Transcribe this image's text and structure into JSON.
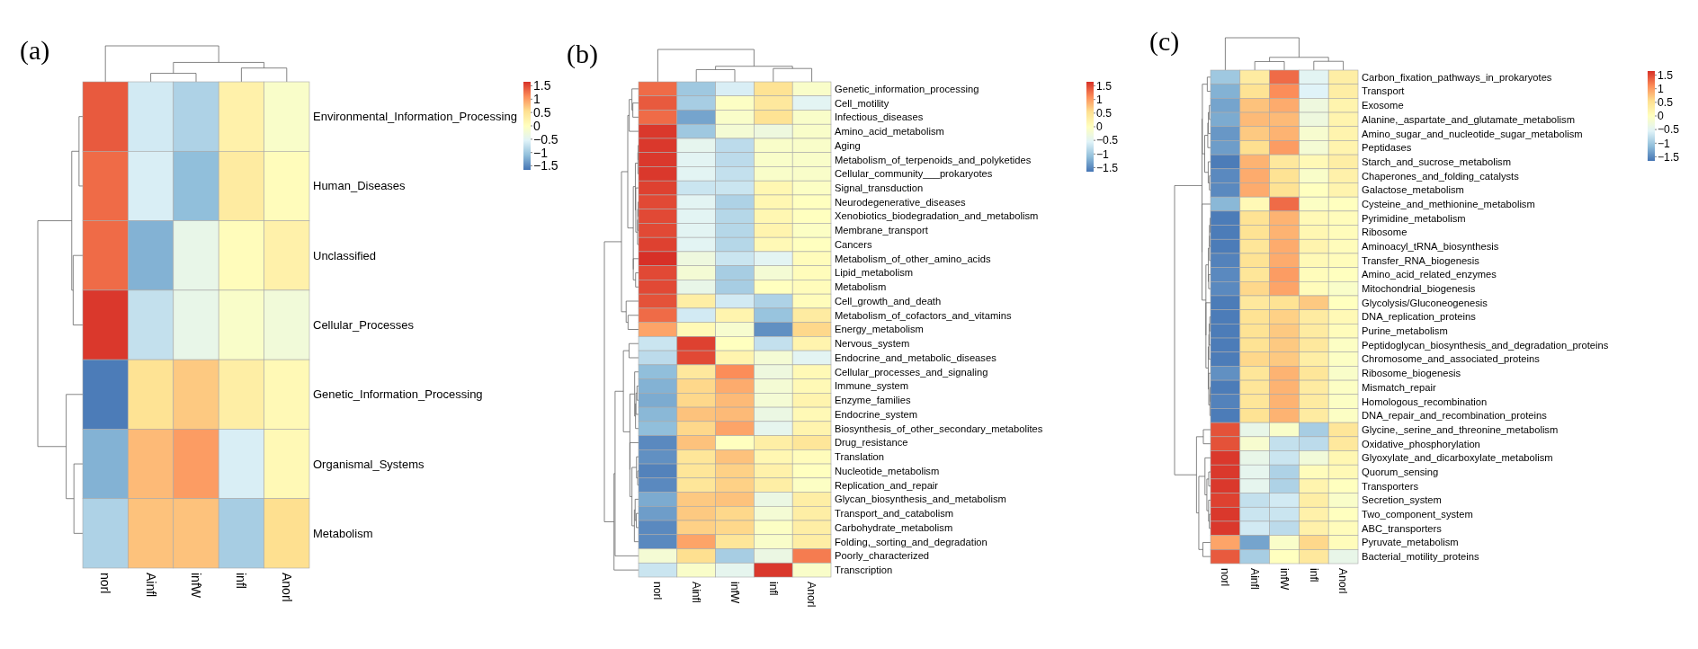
{
  "chart_data": [
    {
      "type": "heatmap",
      "title": "(a)",
      "categories": [
        "norl",
        "Ainfl",
        "infW",
        "infl",
        "Anorl"
      ],
      "y_categories": [
        "Environmental_Information_Processing",
        "Human_Diseases",
        "Unclassified",
        "Cellular_Processes",
        "Genetic_Information_Processing",
        "Organismal_Systems",
        "Metabolism"
      ],
      "cells": [
        [
          1.4,
          -0.65,
          -0.9,
          0.25,
          -0.1
        ],
        [
          1.3,
          -0.6,
          -1.1,
          0.35,
          0.05
        ],
        [
          1.3,
          -1.2,
          -0.4,
          0.05,
          0.25
        ],
        [
          1.6,
          -0.75,
          -0.4,
          -0.1,
          -0.25
        ],
        [
          -1.6,
          0.5,
          0.7,
          0.3,
          0.1
        ],
        [
          -1.2,
          0.8,
          1.0,
          -0.6,
          0.1
        ],
        [
          -0.9,
          0.75,
          0.75,
          -0.95,
          0.55
        ]
      ],
      "clim": [
        -1.65,
        1.65
      ],
      "cticks": [
        1.5,
        1,
        0.5,
        0,
        {
          "value": -0.5,
          "label": "−0.5"
        },
        {
          "value": -1,
          "label": "−1"
        },
        {
          "value": -1.5,
          "label": "−1.5"
        }
      ]
    },
    {
      "type": "heatmap",
      "title": "(b)",
      "categories": [
        "norl",
        "Ainfl",
        "infW",
        "infl",
        "Anorl"
      ],
      "y_categories": [
        "Genetic_information_processing",
        "Cell_motility",
        "Infectious_diseases",
        "Amino_acid_metabolism",
        "Aging",
        "Metabolism_of_terpenoids_and_polyketides",
        "Cellular_community___prokaryotes",
        "Signal_transduction",
        "Neurodegenerative_diseases",
        "Xenobiotics_biodegradation_and_metabolism",
        "Membrane_transport",
        "Cancers",
        "Metabolism_of_other_amino_acids",
        "Lipid_metabolism",
        "Metabolism",
        "Cell_growth_and_death",
        "Metabolism_of_cofactors_and_vitamins",
        "Energy_metabolism",
        "Nervous_system",
        "Endocrine_and_metabolic_diseases",
        "Cellular_processes_and_signaling",
        "Immune_system",
        "Enzyme_families",
        "Endocrine_system",
        "Biosynthesis_of_other_secondary_metabolites",
        "Drug_resistance",
        "Translation",
        "Nucleotide_metabolism",
        "Replication_and_repair",
        "Glycan_biosynthesis_and_metabolism",
        "Transport_and_catabolism",
        "Carbohydrate_metabolism",
        "Folding,_sorting_and_degradation",
        "Poorly_characterized",
        "Transcription"
      ],
      "cells": [
        [
          1.3,
          -1.0,
          -0.6,
          0.5,
          -0.1
        ],
        [
          1.4,
          -0.95,
          -0.05,
          0.4,
          -0.5
        ],
        [
          1.3,
          -1.3,
          -0.1,
          0.5,
          -0.1
        ],
        [
          1.6,
          -1.0,
          -0.2,
          -0.3,
          -0.1
        ],
        [
          1.6,
          -0.45,
          -0.8,
          -0.1,
          -0.1
        ],
        [
          1.6,
          -0.5,
          -0.8,
          -0.1,
          -0.1
        ],
        [
          1.6,
          -0.5,
          -0.75,
          -0.1,
          -0.1
        ],
        [
          1.55,
          -0.7,
          -0.7,
          0.15,
          -0.05
        ],
        [
          1.5,
          -0.5,
          -0.9,
          0.15,
          0
        ],
        [
          1.5,
          -0.5,
          -0.85,
          0.15,
          0
        ],
        [
          1.5,
          -0.5,
          -0.85,
          0.2,
          -0.05
        ],
        [
          1.55,
          -0.5,
          -0.85,
          0.1,
          0
        ],
        [
          1.65,
          -0.3,
          -0.7,
          -0.5,
          0.05
        ],
        [
          1.5,
          -0.2,
          -0.95,
          -0.2,
          0.05
        ],
        [
          1.5,
          -0.4,
          -0.95,
          0,
          0.05
        ],
        [
          1.45,
          0.3,
          -0.65,
          -0.9,
          0.05
        ],
        [
          1.3,
          -0.65,
          0.2,
          -1.05,
          0.35
        ],
        [
          0.95,
          0.1,
          -0.15,
          -1.45,
          0.6
        ],
        [
          -0.7,
          1.55,
          0,
          -0.75,
          0.2
        ],
        [
          -0.8,
          1.5,
          0.2,
          -0.2,
          -0.5
        ],
        [
          -1.1,
          0.4,
          1.1,
          -0.3,
          0.1
        ],
        [
          -1.2,
          0.6,
          0.9,
          -0.2,
          0.1
        ],
        [
          -1.25,
          0.6,
          0.8,
          -0.2,
          0.2
        ],
        [
          -1.15,
          0.75,
          0.8,
          -0.35,
          0.1
        ],
        [
          -1.1,
          0.6,
          0.95,
          -0.45,
          0.2
        ],
        [
          -1.5,
          0.75,
          0,
          0.3,
          0.45
        ],
        [
          -1.45,
          0.45,
          0.75,
          0.15,
          0.05
        ],
        [
          -1.55,
          0.45,
          0.65,
          0.25,
          0
        ],
        [
          -1.5,
          0.45,
          0.65,
          0.3,
          -0.05
        ],
        [
          -1.25,
          0.7,
          0.75,
          -0.35,
          0.3
        ],
        [
          -1.35,
          0.7,
          0.6,
          -0.2,
          0.3
        ],
        [
          -1.5,
          0.65,
          0.6,
          -0.05,
          0.3
        ],
        [
          -1.5,
          0.95,
          0.45,
          -0.1,
          0.3
        ],
        [
          -0.2,
          0.55,
          -0.95,
          -0.35,
          1.2
        ],
        [
          -0.7,
          -0.1,
          -0.45,
          1.6,
          -0.1
        ]
      ],
      "clim": [
        -1.65,
        1.65
      ],
      "cticks": [
        1.5,
        1,
        0.5,
        0,
        {
          "value": -0.5,
          "label": "−0.5"
        },
        {
          "value": -1,
          "label": "−1"
        },
        {
          "value": -1.5,
          "label": "−1.5"
        }
      ]
    },
    {
      "type": "heatmap",
      "title": "(c)",
      "categories": [
        "norl",
        "Ainfl",
        "infW",
        "infl",
        "Anorl"
      ],
      "y_categories": [
        "Carbon_fixation_pathways_in_prokaryotes",
        "Transport",
        "Exosome",
        "Alanine,_aspartate_and_glutamate_metabolism",
        "Amino_sugar_and_nucleotide_sugar_metabolism",
        "Peptidases",
        "Starch_and_sucrose_metabolism",
        "Chaperones_and_folding_catalysts",
        "Galactose_metabolism",
        "Cysteine_and_methionine_metabolism",
        "Pyrimidine_metabolism",
        "Ribosome",
        "Aminoacyl_tRNA_biosynthesis",
        "Transfer_RNA_biogenesis",
        "Amino_acid_related_enzymes",
        "Mitochondrial_biogenesis",
        "Glycolysis/Gluconeogenesis",
        "DNA_replication_proteins",
        "Purine_metabolism",
        "Peptidoglycan_biosynthesis_and_degradation_proteins",
        "Chromosome_and_associated_proteins",
        "Ribosome_biogenesis",
        "Mismatch_repair",
        "Homologous_recombination",
        "DNA_repair_and_recombination_proteins",
        "Glycine,_serine_and_threonine_metabolism",
        "Oxidative_phosphorylation",
        "Glyoxylate_and_dicarboxylate_metabolism",
        "Quorum_sensing",
        "Transporters",
        "Secretion_system",
        "Two_component_system",
        "ABC_transporters",
        "Pyruvate_metabolism",
        "Bacterial_motility_proteins"
      ],
      "cells": [
        [
          -1.0,
          0.35,
          1.3,
          -0.5,
          0.3
        ],
        [
          -1.2,
          0.5,
          1.1,
          -0.55,
          0.3
        ],
        [
          -1.3,
          0.75,
          0.9,
          -0.3,
          0.2
        ],
        [
          -1.25,
          0.8,
          0.8,
          -0.3,
          0.2
        ],
        [
          -1.4,
          0.7,
          0.85,
          -0.15,
          0.2
        ],
        [
          -1.35,
          0.55,
          1.0,
          -0.2,
          0.2
        ],
        [
          -1.6,
          0.85,
          0.4,
          0.1,
          0.3
        ],
        [
          -1.5,
          0.9,
          0.5,
          -0.1,
          0.25
        ],
        [
          -1.5,
          0.9,
          0.5,
          0,
          0.2
        ],
        [
          -1.15,
          0.1,
          1.3,
          -0.05,
          0
        ],
        [
          -1.6,
          0.5,
          0.85,
          0.1,
          0.05
        ],
        [
          -1.6,
          0.5,
          0.85,
          0.15,
          0.05
        ],
        [
          -1.6,
          0.45,
          0.9,
          0.2,
          0.05
        ],
        [
          -1.55,
          0.5,
          0.9,
          0.1,
          0.05
        ],
        [
          -1.5,
          0.45,
          1.0,
          0.05,
          0
        ],
        [
          -1.5,
          0.6,
          0.95,
          0.05,
          -0.1
        ],
        [
          -1.6,
          0.4,
          0.5,
          0.7,
          0
        ],
        [
          -1.6,
          0.5,
          0.65,
          0.35,
          0.1
        ],
        [
          -1.6,
          0.5,
          0.7,
          0.35,
          0.05
        ],
        [
          -1.6,
          0.5,
          0.7,
          0.4,
          -0.05
        ],
        [
          -1.6,
          0.6,
          0.7,
          0.3,
          -0.05
        ],
        [
          -1.45,
          0.45,
          0.85,
          0.45,
          -0.1
        ],
        [
          -1.6,
          0.45,
          0.85,
          0.35,
          -0.05
        ],
        [
          -1.55,
          0.45,
          0.85,
          0.35,
          -0.05
        ],
        [
          -1.6,
          0.5,
          0.85,
          0.35,
          -0.05
        ],
        [
          1.45,
          -0.4,
          -0.1,
          -0.95,
          0.45
        ],
        [
          1.45,
          -0.15,
          -0.75,
          -0.8,
          0.4
        ],
        [
          1.6,
          -0.4,
          -0.7,
          -0.25,
          0.15
        ],
        [
          1.6,
          -0.45,
          -0.9,
          0.05,
          0.1
        ],
        [
          1.6,
          -0.45,
          -0.9,
          0.2,
          0
        ],
        [
          1.55,
          -0.75,
          -0.65,
          0.3,
          -0.1
        ],
        [
          1.6,
          -0.7,
          -0.7,
          0.25,
          0
        ],
        [
          1.6,
          -0.65,
          -0.8,
          0.25,
          0.05
        ],
        [
          0.95,
          -1.3,
          -0.1,
          0.6,
          0.05
        ],
        [
          1.4,
          -0.95,
          0,
          0.4,
          -0.4
        ]
      ],
      "clim": [
        -1.65,
        1.65
      ],
      "cticks": [
        1.5,
        1,
        0.5,
        0,
        {
          "value": -0.5,
          "label": "−0.5"
        },
        {
          "value": -1,
          "label": "−1"
        },
        {
          "value": -1.5,
          "label": "−1.5"
        }
      ]
    }
  ]
}
